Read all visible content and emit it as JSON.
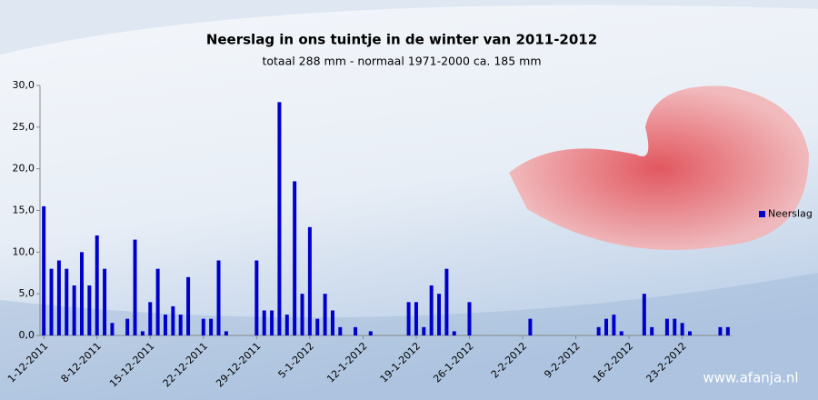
{
  "chart_data": {
    "type": "bar",
    "title": "Neerslag in ons tuintje in de winter van 2011-2012",
    "subtitle": "totaal 288 mm  - normaal  1971-2000  ca. 185 mm",
    "watermark": "www.afanja.nl",
    "categories": [
      "1-12-2011",
      null,
      null,
      null,
      null,
      null,
      null,
      "8-12-2011",
      null,
      null,
      null,
      null,
      null,
      null,
      "15-12-2011",
      null,
      null,
      null,
      null,
      null,
      null,
      "22-12-2011",
      null,
      null,
      null,
      null,
      null,
      null,
      "29-12-2011",
      null,
      null,
      null,
      null,
      null,
      null,
      "5-1-2012",
      null,
      null,
      null,
      null,
      null,
      null,
      "12-1-2012",
      null,
      null,
      null,
      null,
      null,
      null,
      "19-1-2012",
      null,
      null,
      null,
      null,
      null,
      null,
      "26-1-2012",
      null,
      null,
      null,
      null,
      null,
      null,
      "2-2-2012",
      null,
      null,
      null,
      null,
      null,
      null,
      "9-2-2012",
      null,
      null,
      null,
      null,
      null,
      null,
      "16-2-2012",
      null,
      null,
      null,
      null,
      null,
      null,
      "23-2-2012",
      null,
      null,
      null,
      null,
      null,
      null
    ],
    "series": [
      {
        "name": "Neerslag",
        "color": "#0000cc",
        "values": [
          15.5,
          8,
          9,
          8,
          6,
          10,
          6,
          12,
          8,
          1.5,
          0,
          2,
          11.5,
          0.5,
          4,
          8,
          2.5,
          3.5,
          2.5,
          7,
          0,
          2,
          2,
          9,
          0.5,
          0,
          0,
          0,
          9,
          3,
          3,
          28,
          2.5,
          18.5,
          5,
          13,
          2,
          5,
          3,
          1,
          0,
          1,
          0,
          0.5,
          0,
          0,
          0,
          0,
          4,
          4,
          1,
          6,
          5,
          8,
          0.5,
          0,
          4,
          0,
          0,
          0,
          0,
          0,
          0,
          0,
          2,
          0,
          0,
          0,
          0,
          0,
          0,
          0,
          0,
          1,
          2,
          2.5,
          0.5,
          0,
          0,
          5,
          1,
          0,
          2,
          2,
          1.5,
          0.5,
          0,
          0,
          0,
          1,
          1
        ]
      }
    ],
    "ylim": [
      0,
      30
    ],
    "yticks": [
      {
        "value": 0,
        "label": "0,0"
      },
      {
        "value": 5,
        "label": "5,0"
      },
      {
        "value": 10,
        "label": "10,0"
      },
      {
        "value": 15,
        "label": "15,0"
      },
      {
        "value": 20,
        "label": "20,0"
      },
      {
        "value": 25,
        "label": "25,0"
      },
      {
        "value": 30,
        "label": "30,0"
      }
    ],
    "legend": "right"
  }
}
